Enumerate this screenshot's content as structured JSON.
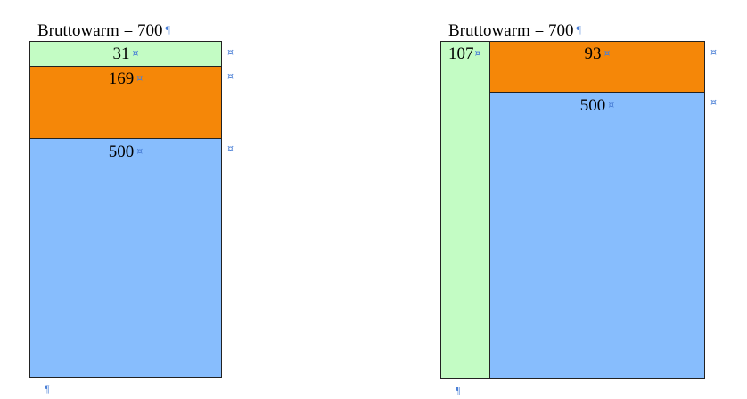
{
  "colors": {
    "green": "#c3fcc4",
    "orange": "#f58708",
    "blue": "#87bdfd",
    "border": "#222222",
    "formatting_mark": "#4a7fd6"
  },
  "marks": {
    "pilcrow": "¶",
    "cell_end": "¤"
  },
  "left_table": {
    "title": "Bruttowarm = 700",
    "cells": [
      {
        "label": "31",
        "color": "green"
      },
      {
        "label": "169",
        "color": "orange"
      },
      {
        "label": "500",
        "color": "blue"
      }
    ]
  },
  "right_table": {
    "title": "Bruttowarm = 700",
    "cells": [
      {
        "label": "107",
        "color": "green"
      },
      {
        "label": "93",
        "color": "orange"
      },
      {
        "label": "500",
        "color": "blue"
      }
    ]
  }
}
